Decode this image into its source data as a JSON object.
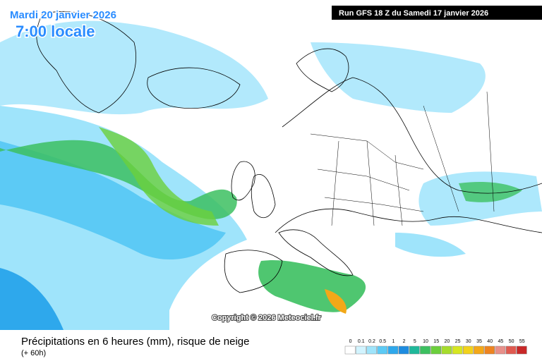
{
  "header": {
    "date": "Mardi 20 janvier 2026",
    "time": "7:00 locale",
    "run": "Run GFS 18 Z du Samedi 17 janvier 2026"
  },
  "map": {
    "copyright": "Copyright © 2026 Meteociel.fr"
  },
  "footer": {
    "title": "Précipitations en 6 heures (mm), risque de neige",
    "lead": "(+ 60h)"
  },
  "legend": {
    "values": [
      0,
      0.1,
      0.2,
      0.5,
      1,
      2,
      5,
      10,
      15,
      20,
      25,
      30,
      35,
      40,
      45,
      50,
      55
    ],
    "colors": [
      "#ffffff",
      "#d2f4ff",
      "#9fe4fb",
      "#5ccaf5",
      "#2ea8ec",
      "#1e8ce0",
      "#1fb89a",
      "#3cc060",
      "#6ccf3c",
      "#a6dc2c",
      "#d6e620",
      "#f2d21a",
      "#f4a818",
      "#ee8420",
      "#e8908a",
      "#e05a50",
      "#c82828"
    ]
  }
}
